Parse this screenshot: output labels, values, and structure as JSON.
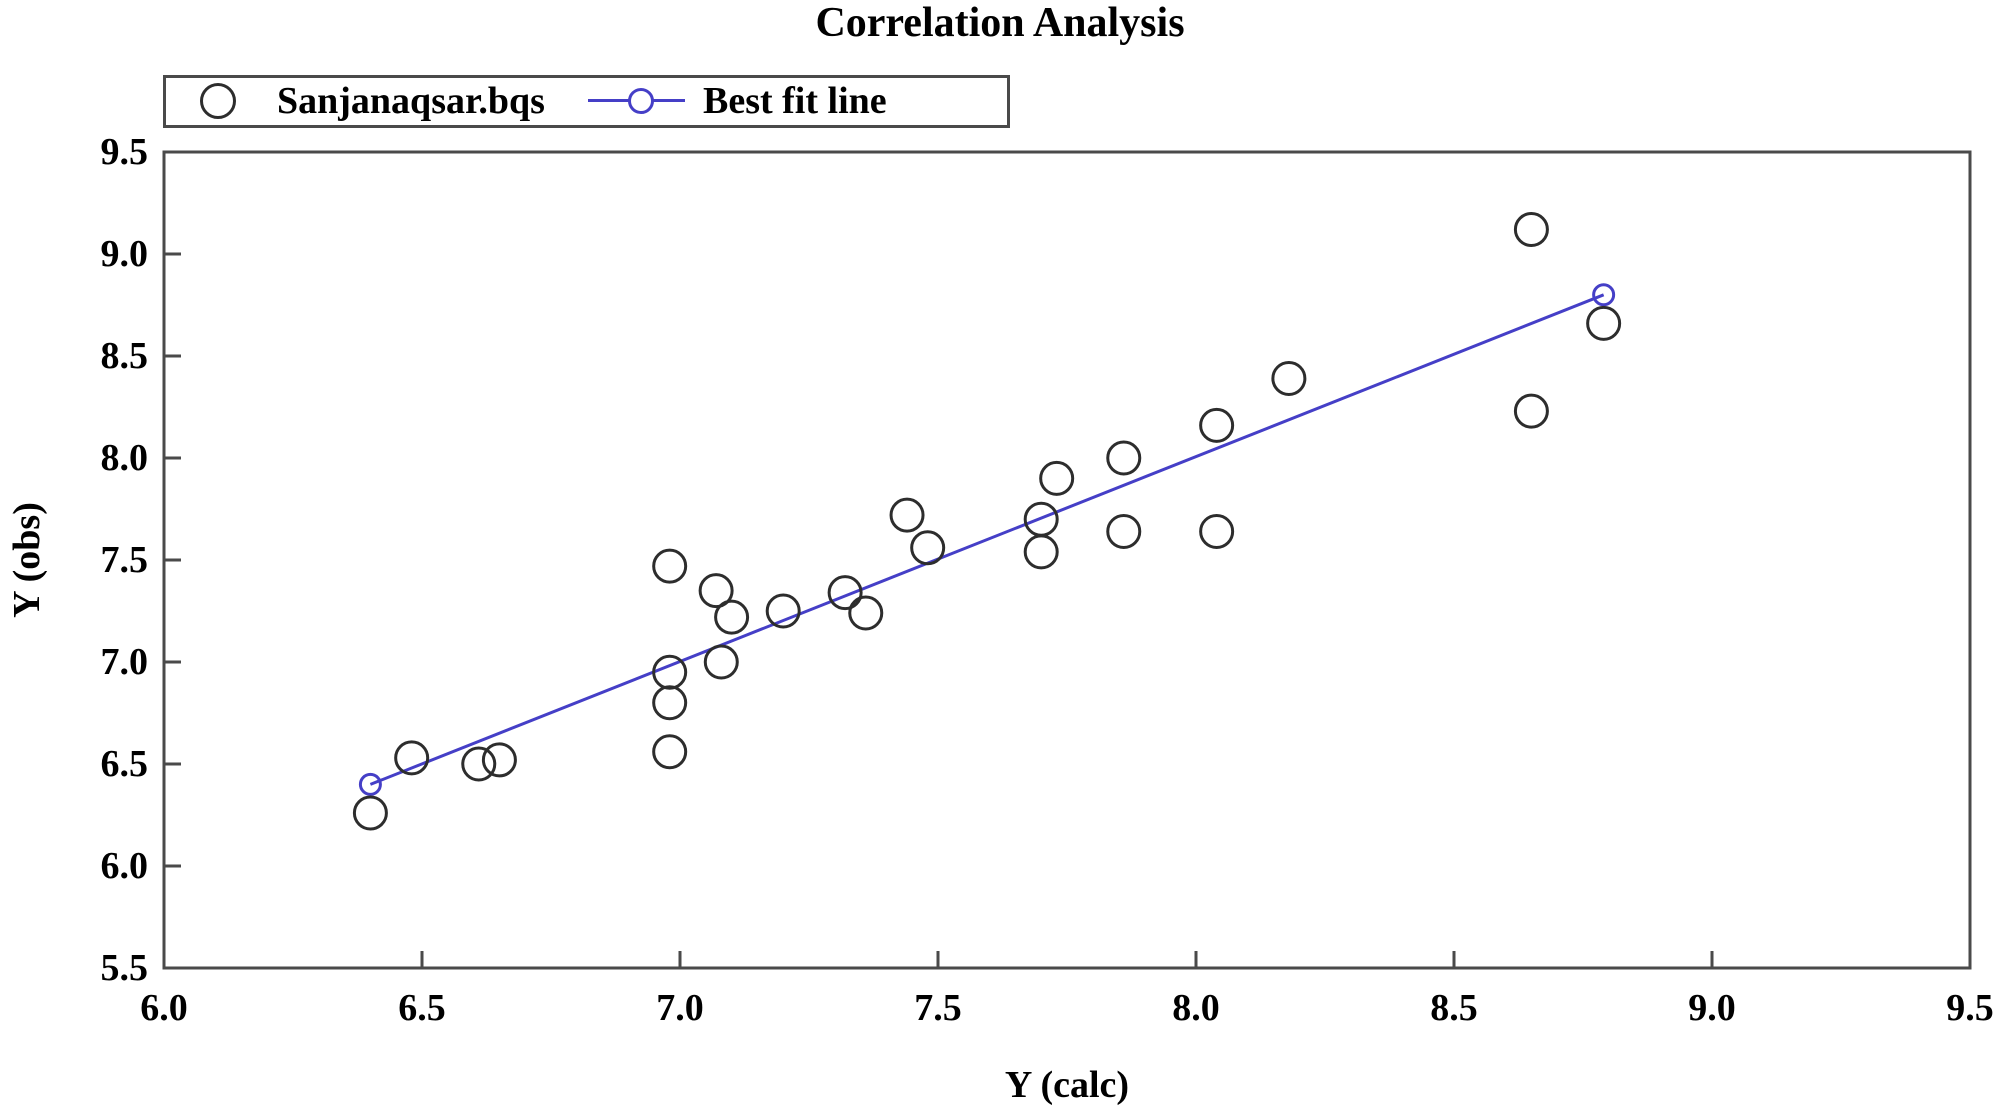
{
  "title": "Correlation Analysis",
  "legend": {
    "series1_label": "Sanjanaqsar.bqs",
    "series2_label": "Best fit line"
  },
  "axes": {
    "xlabel": "Y (calc)",
    "ylabel": "Y (obs)"
  },
  "colors": {
    "scatter_stroke": "#2d2d2d",
    "fit_line": "#453fc7",
    "axis_frame": "#4a4a4a",
    "text": "#000000",
    "background": "#ffffff"
  },
  "chart_data": {
    "type": "scatter",
    "title": "Correlation Analysis",
    "xlabel": "Y (calc)",
    "ylabel": "Y (obs)",
    "xlim": [
      6.0,
      9.5
    ],
    "ylim": [
      5.5,
      9.5
    ],
    "x_ticks": [
      6.0,
      6.5,
      7.0,
      7.5,
      8.0,
      8.5,
      9.0,
      9.5
    ],
    "y_ticks": [
      5.5,
      6.0,
      6.5,
      7.0,
      7.5,
      8.0,
      8.5,
      9.0,
      9.5
    ],
    "grid": false,
    "legend_position": "top-left-outside",
    "series": [
      {
        "name": "Sanjanaqsar.bqs",
        "kind": "scatter",
        "marker": "open-circle",
        "points": [
          [
            6.4,
            6.26
          ],
          [
            6.48,
            6.53
          ],
          [
            6.61,
            6.5
          ],
          [
            6.65,
            6.52
          ],
          [
            6.98,
            6.56
          ],
          [
            6.98,
            6.8
          ],
          [
            6.98,
            6.95
          ],
          [
            6.98,
            7.47
          ],
          [
            7.07,
            7.35
          ],
          [
            7.08,
            7.0
          ],
          [
            7.1,
            7.22
          ],
          [
            7.2,
            7.25
          ],
          [
            7.32,
            7.34
          ],
          [
            7.36,
            7.24
          ],
          [
            7.44,
            7.72
          ],
          [
            7.48,
            7.56
          ],
          [
            7.7,
            7.54
          ],
          [
            7.7,
            7.7
          ],
          [
            7.73,
            7.9
          ],
          [
            7.86,
            7.64
          ],
          [
            7.86,
            8.0
          ],
          [
            8.04,
            7.64
          ],
          [
            8.04,
            8.16
          ],
          [
            8.18,
            8.39
          ],
          [
            8.65,
            8.23
          ],
          [
            8.65,
            9.12
          ],
          [
            8.79,
            8.66
          ]
        ]
      },
      {
        "name": "Best fit line",
        "kind": "line",
        "marker": "open-circle-small",
        "points": [
          [
            6.4,
            6.4
          ],
          [
            8.79,
            8.8
          ]
        ]
      }
    ]
  }
}
